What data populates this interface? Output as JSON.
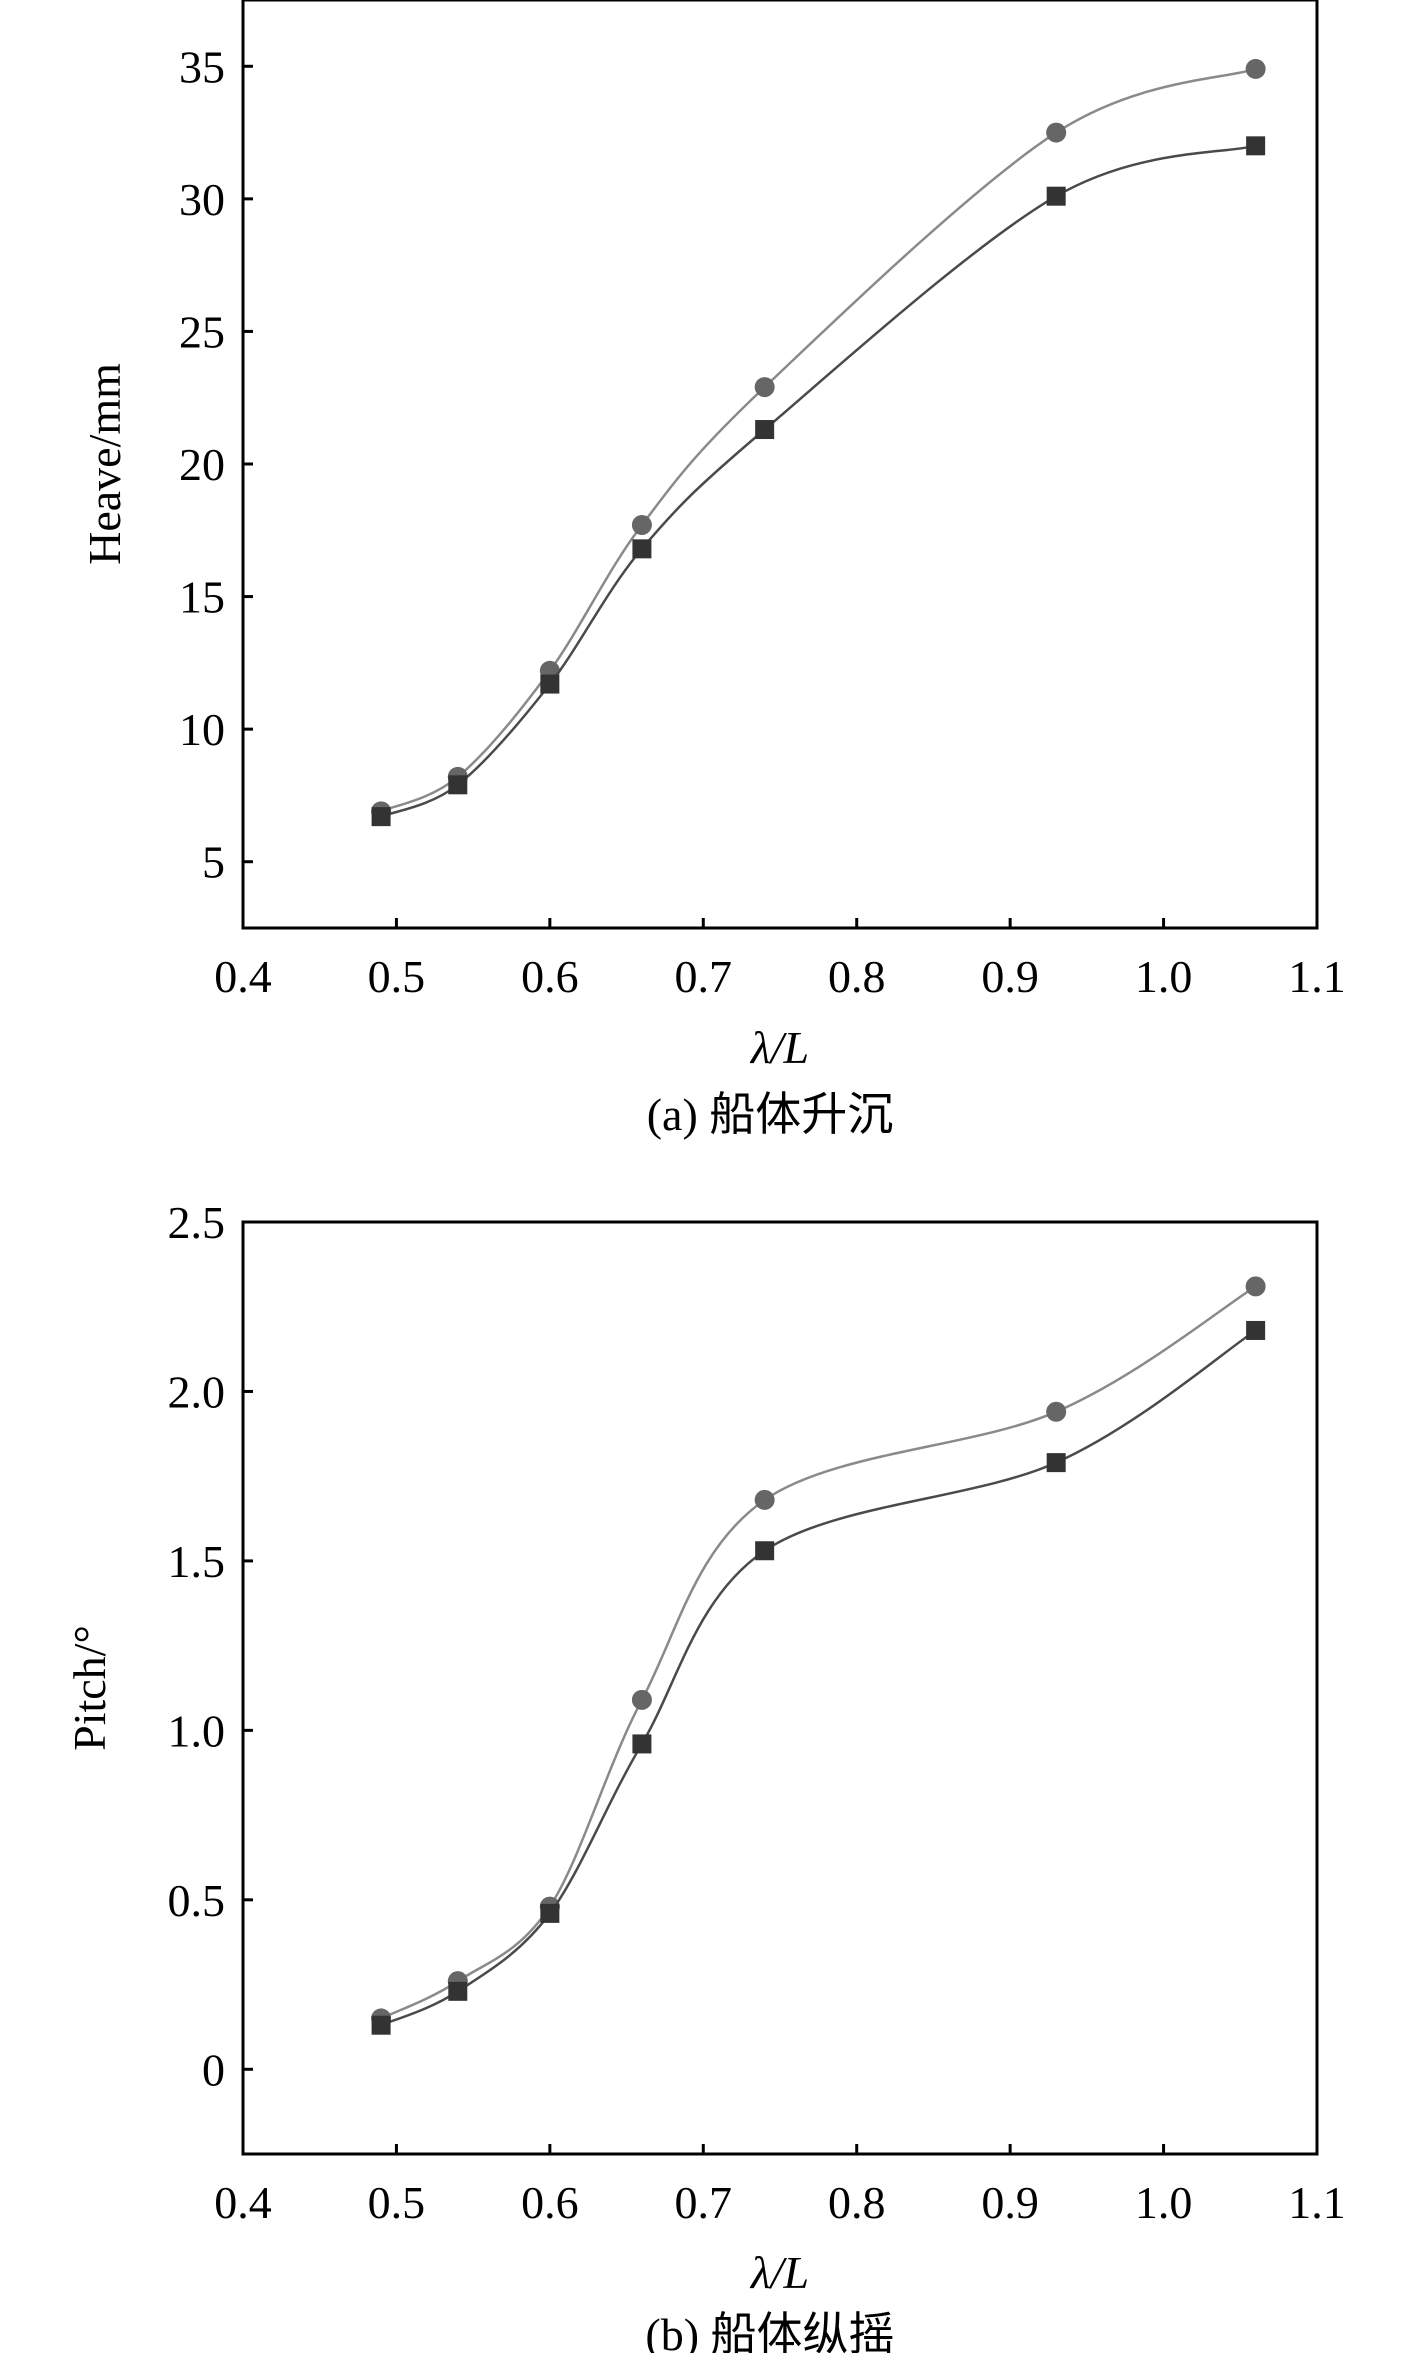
{
  "chart_data": [
    {
      "type": "line",
      "caption": "(a) 船体升沉",
      "xlabel": "λ/L",
      "ylabel": "Heave/mm",
      "xlim": [
        0.4,
        1.1
      ],
      "ylim": [
        2.5,
        37.5
      ],
      "xticks": [
        "0.4",
        "0.5",
        "0.6",
        "0.7",
        "0.8",
        "0.9",
        "1.0",
        "1.1"
      ],
      "xtick_values": [
        0.4,
        0.5,
        0.6,
        0.7,
        0.8,
        0.9,
        1.0,
        1.1
      ],
      "yticks": [
        "5",
        "10",
        "15",
        "20",
        "25",
        "30",
        "35"
      ],
      "ytick_values": [
        5,
        10,
        15,
        20,
        25,
        30,
        35
      ],
      "grid": false,
      "x": [
        0.49,
        0.54,
        0.6,
        0.66,
        0.74,
        0.93,
        1.06
      ],
      "series": [
        {
          "marker": "circle",
          "color": "#666666",
          "line_color": "#8a8a8a",
          "values": [
            6.9,
            8.2,
            12.2,
            17.7,
            22.9,
            32.5,
            34.9
          ]
        },
        {
          "marker": "square",
          "color": "#333333",
          "line_color": "#4a4a4a",
          "values": [
            6.7,
            7.9,
            11.7,
            16.8,
            21.3,
            30.1,
            32.0
          ]
        }
      ]
    },
    {
      "type": "line",
      "caption": "(b) 船体纵摇",
      "xlabel": "λ/L",
      "ylabel": "Pitch/°",
      "xlim": [
        0.4,
        1.1
      ],
      "ylim": [
        -0.25,
        2.5
      ],
      "xticks": [
        "0.4",
        "0.5",
        "0.6",
        "0.7",
        "0.8",
        "0.9",
        "1.0",
        "1.1"
      ],
      "xtick_values": [
        0.4,
        0.5,
        0.6,
        0.7,
        0.8,
        0.9,
        1.0,
        1.1
      ],
      "yticks": [
        "0",
        "0.5",
        "1.0",
        "1.5",
        "2.0",
        "2.5"
      ],
      "ytick_values": [
        0,
        0.5,
        1.0,
        1.5,
        2.0,
        2.5
      ],
      "grid": false,
      "x": [
        0.49,
        0.54,
        0.6,
        0.66,
        0.74,
        0.93,
        1.06
      ],
      "series": [
        {
          "marker": "circle",
          "color": "#666666",
          "line_color": "#8a8a8a",
          "values": [
            0.15,
            0.26,
            0.48,
            1.09,
            1.68,
            1.94,
            2.31
          ]
        },
        {
          "marker": "square",
          "color": "#333333",
          "line_color": "#4a4a4a",
          "values": [
            0.13,
            0.23,
            0.46,
            0.96,
            1.53,
            1.79,
            2.18
          ]
        }
      ]
    }
  ]
}
